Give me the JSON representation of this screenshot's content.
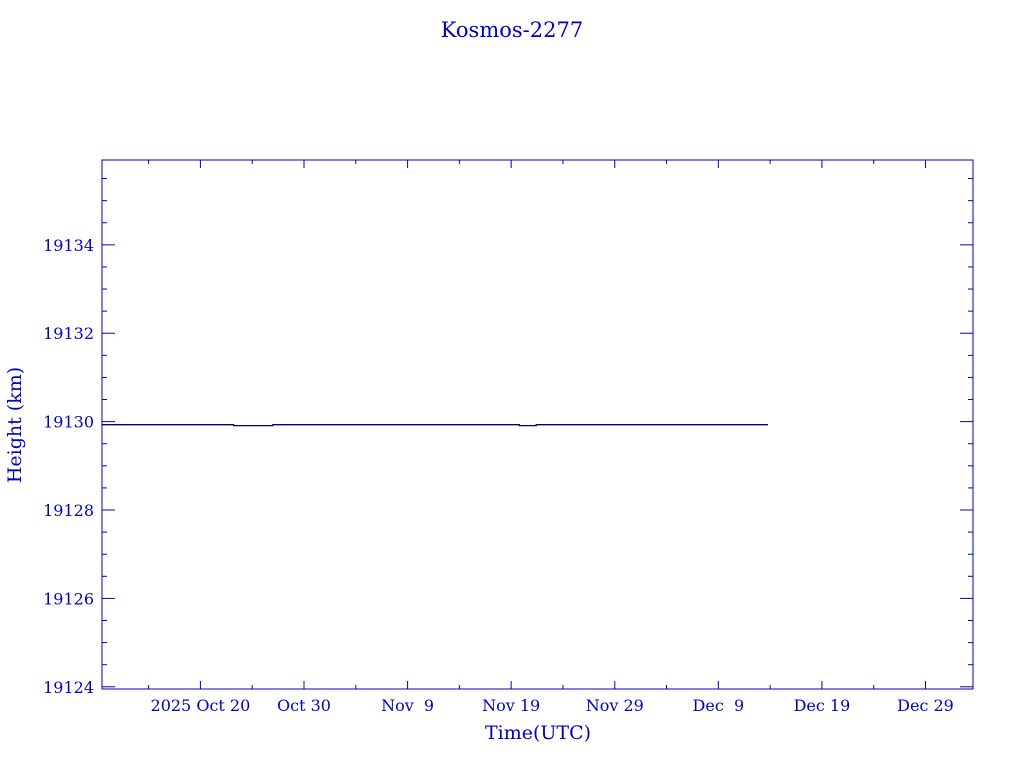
{
  "chart_data": {
    "type": "line",
    "title": "Kosmos-2277",
    "xlabel": "Time(UTC)",
    "ylabel": "Height (km)",
    "xlim": [
      "2025-10-10T12:00:00Z",
      "2026-01-02T14:00:00Z"
    ],
    "ylim": [
      19123.95,
      19135.92
    ],
    "x_tick_labels": [
      {
        "date": "2025-10-20",
        "label": "2025 Oct 20"
      },
      {
        "date": "2025-10-30",
        "label": "Oct 30"
      },
      {
        "date": "2025-11-09",
        "label": "Nov  9"
      },
      {
        "date": "2025-11-19",
        "label": "Nov 19"
      },
      {
        "date": "2025-11-29",
        "label": "Nov 29"
      },
      {
        "date": "2025-12-09",
        "label": "Dec  9"
      },
      {
        "date": "2025-12-19",
        "label": "Dec 19"
      },
      {
        "date": "2025-12-29",
        "label": "Dec 29"
      }
    ],
    "y_ticks": [
      19124,
      19126,
      19128,
      19130,
      19132,
      19134
    ],
    "grid": false,
    "color": "#0000c0",
    "line_color": "#000080",
    "series": [
      {
        "x": [
          "2025-10-10T12:00:00Z",
          "2025-10-23T05:00:00Z",
          "2025-10-23T05:00:00Z",
          "2025-10-27T00:00:00Z",
          "2025-10-27T00:00:00Z",
          "2025-11-19T19:00:00Z",
          "2025-11-19T19:00:00Z",
          "2025-11-21T10:00:00Z",
          "2025-11-21T10:00:00Z",
          "2025-12-13T19:00:00Z"
        ],
        "y": [
          19129.93,
          19129.93,
          19129.91,
          19129.91,
          19129.93,
          19129.93,
          19129.91,
          19129.91,
          19129.93,
          19129.93
        ]
      }
    ]
  }
}
